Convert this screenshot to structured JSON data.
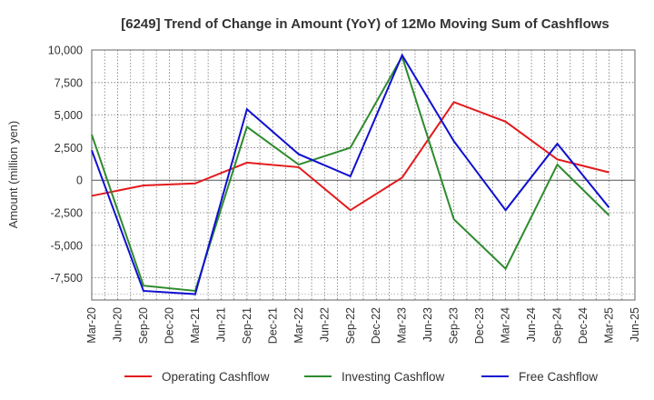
{
  "chart_data": {
    "type": "line",
    "title": "[6249]  Trend of Change in Amount (YoY) of 12Mo Moving Sum of Cashflows",
    "xlabel": "",
    "ylabel": "Amount (million yen)",
    "ylim": [
      -9200,
      10000
    ],
    "yticks": [
      10000,
      7500,
      5000,
      2500,
      0,
      -2500,
      -5000,
      -7500
    ],
    "ytick_labels": [
      "10,000",
      "7,500",
      "5,000",
      "2,500",
      "0",
      "-2,500",
      "-5,000",
      "-7,500"
    ],
    "categories": [
      "Mar-20",
      "Jun-20",
      "Sep-20",
      "Dec-20",
      "Mar-21",
      "Jun-21",
      "Sep-21",
      "Dec-21",
      "Mar-22",
      "Jun-22",
      "Sep-22",
      "Dec-22",
      "Mar-23",
      "Jun-23",
      "Sep-23",
      "Dec-23",
      "Mar-24",
      "Jun-24",
      "Sep-24",
      "Dec-24",
      "Mar-25",
      "Jun-25"
    ],
    "grid": true,
    "legend_position": "bottom",
    "series": [
      {
        "name": "Operating Cashflow",
        "color": "#e31a1c",
        "values": [
          -1200,
          null,
          -400,
          null,
          -250,
          null,
          1350,
          null,
          1000,
          null,
          -2300,
          null,
          200,
          null,
          6000,
          null,
          4500,
          null,
          1600,
          null,
          600,
          null
        ]
      },
      {
        "name": "Investing Cashflow",
        "color": "#2e8b2e",
        "values": [
          3500,
          null,
          -8100,
          null,
          -8500,
          null,
          4100,
          null,
          1200,
          null,
          2500,
          null,
          9500,
          null,
          -3000,
          null,
          -6800,
          null,
          1200,
          null,
          -2700,
          null
        ]
      },
      {
        "name": "Free Cashflow",
        "color": "#1010d0",
        "values": [
          2300,
          null,
          -8500,
          null,
          -8750,
          null,
          5450,
          null,
          2000,
          null,
          300,
          null,
          9600,
          null,
          3000,
          null,
          -2300,
          null,
          2800,
          null,
          -2100,
          null
        ]
      }
    ]
  }
}
